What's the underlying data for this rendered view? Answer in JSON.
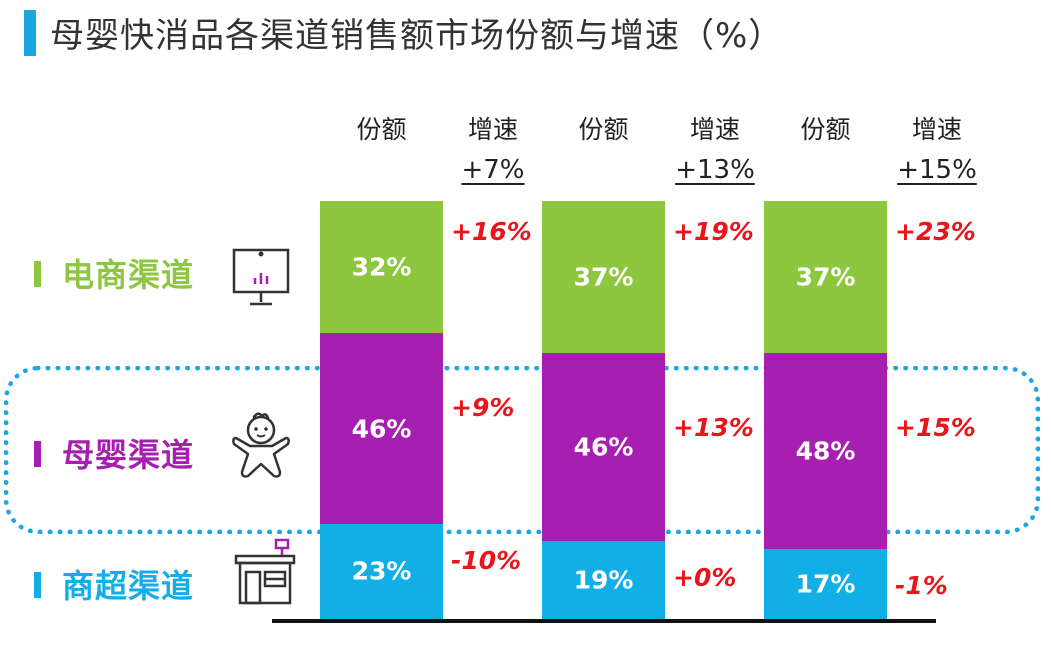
{
  "title": "母婴快消品各渠道销售额市场份额与增速（%）",
  "colors": {
    "title_accent": "#1ba6e0",
    "ecommerce": "#8dc63f",
    "maternal": "#a61fb0",
    "supermarket": "#12aee6",
    "growth_text": "#e8161c",
    "highlight_box": "#1ba6e0"
  },
  "headers": {
    "share": "份额",
    "growth": "增速"
  },
  "channels": [
    {
      "key": "ecommerce",
      "label": "电商渠道",
      "icon": "presentation-board-icon"
    },
    {
      "key": "maternal",
      "label": "母婴渠道",
      "icon": "baby-icon"
    },
    {
      "key": "supermarket",
      "label": "商超渠道",
      "icon": "storefront-icon"
    }
  ],
  "chart_data": {
    "type": "bar",
    "stacked": true,
    "percent_stacked": true,
    "categories": [
      "",
      "",
      ""
    ],
    "total_growth": [
      "+7%",
      "+13%",
      "+15%"
    ],
    "series": [
      {
        "name": "电商渠道",
        "values": [
          32,
          37,
          37
        ],
        "labels": [
          "32%",
          "37%",
          "37%"
        ],
        "growth": [
          "+16%",
          "+19%",
          "+23%"
        ],
        "color": "#8dc63f"
      },
      {
        "name": "母婴渠道",
        "values": [
          46,
          46,
          48
        ],
        "labels": [
          "46%",
          "46%",
          "48%"
        ],
        "growth": [
          "+9%",
          "+13%",
          "+15%"
        ],
        "color": "#a61fb0"
      },
      {
        "name": "商超渠道",
        "values": [
          23,
          19,
          17
        ],
        "labels": [
          "23%",
          "19%",
          "17%"
        ],
        "growth": [
          "-10%",
          "+0%",
          "-1%"
        ],
        "color": "#12aee6"
      }
    ],
    "legend": "left",
    "grid": false
  }
}
